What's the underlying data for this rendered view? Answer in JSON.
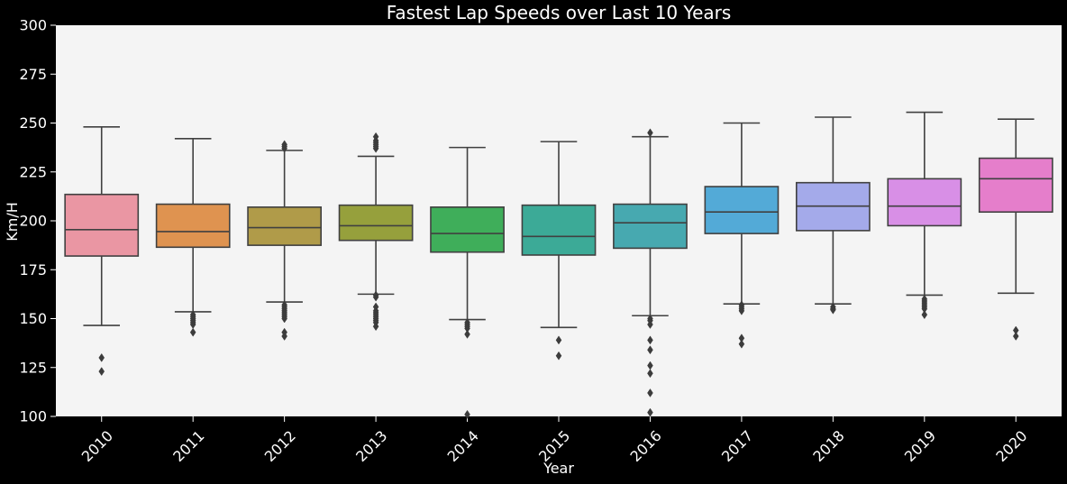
{
  "chart_data": {
    "type": "boxplot",
    "title": "Fastest Lap Speeds over Last 10 Years",
    "xlabel": "Year",
    "ylabel": "Km/H",
    "ylim": [
      100,
      300
    ],
    "yticks": [
      100,
      125,
      150,
      175,
      200,
      225,
      250,
      275,
      300
    ],
    "grid": false,
    "legend": "none",
    "categories": [
      "2010",
      "2011",
      "2012",
      "2013",
      "2014",
      "2015",
      "2016",
      "2017",
      "2018",
      "2019",
      "2020"
    ],
    "colors": [
      "#EA96A3",
      "#DF9350",
      "#B09B49",
      "#96A03C",
      "#3FAE5A",
      "#3CAA97",
      "#47A9B0",
      "#53AAD7",
      "#A4AAEA",
      "#D88FE6",
      "#E57ECB"
    ],
    "boxes": [
      {
        "x": "2010",
        "whisker_low": 146.5,
        "q1": 182.0,
        "median": 195.5,
        "q3": 213.5,
        "whisker_high": 248.0,
        "outliers": [
          130.0,
          123.0
        ]
      },
      {
        "x": "2011",
        "whisker_low": 153.5,
        "q1": 186.5,
        "median": 194.5,
        "q3": 208.5,
        "whisker_high": 242.0,
        "outliers": [
          152.0,
          151.0,
          150.0,
          149.0,
          148.0,
          147.0,
          143.0
        ]
      },
      {
        "x": "2012",
        "whisker_low": 158.5,
        "q1": 187.5,
        "median": 196.5,
        "q3": 207.0,
        "whisker_high": 236.0,
        "outliers": [
          239.0,
          238.0,
          237.0,
          157.0,
          156.0,
          155.0,
          154.0,
          153.0,
          152.0,
          151.0,
          150.0,
          143.0,
          141.0
        ]
      },
      {
        "x": "2013",
        "whisker_low": 162.5,
        "q1": 190.0,
        "median": 197.5,
        "q3": 208.0,
        "whisker_high": 233.0,
        "outliers": [
          243.0,
          241.0,
          240.0,
          239.0,
          238.0,
          237.0,
          162.0,
          161.0,
          156.0,
          154.0,
          153.0,
          152.0,
          151.0,
          150.0,
          149.0,
          148.0,
          146.0
        ]
      },
      {
        "x": "2014",
        "whisker_low": 149.5,
        "q1": 184.0,
        "median": 193.5,
        "q3": 207.0,
        "whisker_high": 237.5,
        "outliers": [
          148.0,
          147.0,
          146.0,
          145.0,
          142.0,
          101.0
        ]
      },
      {
        "x": "2015",
        "whisker_low": 145.5,
        "q1": 182.5,
        "median": 192.0,
        "q3": 208.0,
        "whisker_high": 240.5,
        "outliers": [
          139.0,
          131.0
        ]
      },
      {
        "x": "2016",
        "whisker_low": 151.5,
        "q1": 186.0,
        "median": 199.0,
        "q3": 208.5,
        "whisker_high": 243.0,
        "outliers": [
          245.0,
          150.0,
          149.0,
          147.0,
          139.0,
          134.0,
          126.0,
          122.0,
          112.0,
          102.0
        ]
      },
      {
        "x": "2017",
        "whisker_low": 157.5,
        "q1": 193.5,
        "median": 204.5,
        "q3": 217.5,
        "whisker_high": 250.0,
        "outliers": [
          157.0,
          156.0,
          155.0,
          154.0,
          140.0,
          137.0
        ]
      },
      {
        "x": "2018",
        "whisker_low": 157.5,
        "q1": 195.0,
        "median": 207.5,
        "q3": 219.5,
        "whisker_high": 253.0,
        "outliers": [
          156.0,
          155.0,
          154.5
        ]
      },
      {
        "x": "2019",
        "whisker_low": 162.0,
        "q1": 197.5,
        "median": 207.5,
        "q3": 221.5,
        "whisker_high": 255.5,
        "outliers": [
          160.0,
          159.0,
          158.0,
          157.0,
          156.0,
          155.0,
          152.0
        ]
      },
      {
        "x": "2020",
        "whisker_low": 163.0,
        "q1": 204.5,
        "median": 221.5,
        "q3": 232.0,
        "whisker_high": 252.0,
        "outliers": [
          144.0,
          141.0
        ]
      }
    ]
  }
}
